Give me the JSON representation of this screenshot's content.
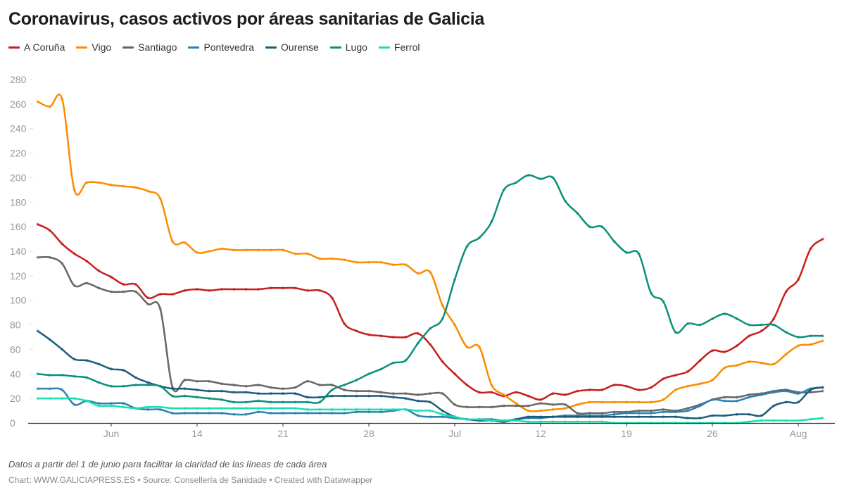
{
  "title": "Coronavirus, casos activos por áreas sanitarias de Galicia",
  "note": "Datos a partir del 1 de junio para facilitar la claridad de las líneas de cada área",
  "credit": "Chart: WWW.GALICIAPRESS.ES • Source: Consellería de Sanidade • Created with Datawrapper",
  "chart_data": {
    "type": "line",
    "title": "Coronavirus, casos activos por áreas sanitarias de Galicia",
    "xlabel": "",
    "ylabel": "",
    "ylim": [
      0,
      280
    ],
    "yticks": [
      0,
      20,
      40,
      60,
      80,
      100,
      120,
      140,
      160,
      180,
      200,
      220,
      240,
      260,
      280
    ],
    "x_start": "Jun 1",
    "x_end": "Aug 4",
    "xticks": [
      {
        "date": "Jun 7",
        "label": "Jun"
      },
      {
        "date": "Jun 14",
        "label": "14"
      },
      {
        "date": "Jun 21",
        "label": "21"
      },
      {
        "date": "Jun 28",
        "label": "28"
      },
      {
        "date": "Jul 5",
        "label": "Jul"
      },
      {
        "date": "Jul 12",
        "label": "12"
      },
      {
        "date": "Jul 19",
        "label": "19"
      },
      {
        "date": "Jul 26",
        "label": "26"
      },
      {
        "date": "Aug 2",
        "label": "Aug"
      }
    ],
    "grid": false,
    "legend": "top-left",
    "series": [
      {
        "name": "A Coruña",
        "color": "#c71e1d",
        "values": [
          162,
          157,
          146,
          138,
          132,
          124,
          119,
          113,
          113,
          102,
          105,
          105,
          108,
          109,
          108,
          109,
          109,
          109,
          109,
          110,
          110,
          110,
          108,
          108,
          102,
          81,
          75,
          72,
          71,
          70,
          70,
          73,
          64,
          50,
          40,
          31,
          25,
          25,
          22,
          25,
          22,
          19,
          24,
          23,
          26,
          27,
          27,
          31,
          30,
          27,
          29,
          36,
          39,
          42,
          51,
          59,
          58,
          63,
          71,
          75,
          85,
          107,
          117,
          142,
          150
        ]
      },
      {
        "name": "Vigo",
        "color": "#fa8c00",
        "values": [
          262,
          258,
          264,
          190,
          196,
          196,
          194,
          193,
          192,
          189,
          183,
          148,
          147,
          139,
          140,
          142,
          141,
          141,
          141,
          141,
          141,
          138,
          138,
          134,
          134,
          133,
          131,
          131,
          131,
          129,
          129,
          122,
          123,
          96,
          80,
          62,
          62,
          31,
          23,
          16,
          10,
          10,
          11,
          12,
          15,
          17,
          17,
          17,
          17,
          17,
          17,
          19,
          27,
          30,
          32,
          35,
          45,
          47,
          50,
          49,
          48,
          56,
          63,
          64,
          67
        ]
      },
      {
        "name": "Santiago",
        "color": "#666666",
        "values": [
          135,
          135,
          130,
          112,
          114,
          110,
          107,
          107,
          107,
          97,
          93,
          29,
          35,
          34,
          34,
          32,
          31,
          30,
          31,
          29,
          28,
          29,
          34,
          31,
          31,
          27,
          26,
          26,
          25,
          24,
          24,
          23,
          24,
          24,
          15,
          13,
          13,
          13,
          14,
          14,
          14,
          16,
          15,
          15,
          8,
          8,
          8,
          9,
          9,
          10,
          10,
          11,
          10,
          12,
          15,
          19,
          21,
          21,
          23,
          24,
          26,
          27,
          25,
          25,
          26
        ]
      },
      {
        "name": "Pontevedra",
        "color": "#2a82b3",
        "values": [
          28,
          28,
          27,
          15,
          18,
          16,
          16,
          16,
          12,
          11,
          11,
          8,
          8,
          8,
          8,
          8,
          7,
          7,
          9,
          8,
          8,
          8,
          8,
          8,
          8,
          8,
          9,
          9,
          9,
          10,
          11,
          6,
          5,
          5,
          4,
          3,
          3,
          3,
          2,
          3,
          4,
          4,
          5,
          6,
          6,
          6,
          6,
          7,
          8,
          8,
          8,
          9,
          9,
          10,
          14,
          19,
          18,
          18,
          21,
          23,
          25,
          26,
          24,
          28,
          29
        ]
      },
      {
        "name": "Ourense",
        "color": "#1b5b7d",
        "values": [
          75,
          68,
          60,
          52,
          51,
          48,
          44,
          43,
          37,
          33,
          30,
          28,
          28,
          27,
          26,
          26,
          25,
          25,
          24,
          24,
          24,
          24,
          21,
          21,
          22,
          22,
          22,
          22,
          22,
          21,
          20,
          18,
          17,
          10,
          5,
          3,
          2,
          2,
          1,
          3,
          5,
          5,
          5,
          5,
          5,
          5,
          5,
          5,
          5,
          5,
          5,
          5,
          5,
          4,
          4,
          6,
          6,
          7,
          7,
          6,
          14,
          17,
          17,
          27,
          29
        ]
      },
      {
        "name": "Lugo",
        "color": "#0a907a",
        "values": [
          40,
          39,
          39,
          38,
          37,
          33,
          30,
          30,
          31,
          31,
          30,
          22,
          22,
          21,
          20,
          19,
          17,
          17,
          18,
          17,
          17,
          17,
          17,
          17,
          27,
          31,
          35,
          40,
          44,
          49,
          51,
          65,
          77,
          85,
          117,
          144,
          151,
          164,
          190,
          196,
          202,
          199,
          200,
          181,
          171,
          160,
          160,
          148,
          139,
          138,
          106,
          99,
          74,
          81,
          80,
          85,
          89,
          85,
          80,
          80,
          80,
          74,
          70,
          71,
          71
        ]
      },
      {
        "name": "Ferrol",
        "color": "#17e0ae",
        "values": [
          20,
          20,
          20,
          20,
          18,
          14,
          14,
          13,
          12,
          13,
          13,
          12,
          12,
          12,
          12,
          12,
          12,
          12,
          12,
          12,
          12,
          12,
          11,
          11,
          11,
          11,
          11,
          11,
          11,
          11,
          11,
          10,
          10,
          7,
          5,
          3,
          3,
          2,
          2,
          2,
          1,
          1,
          1,
          1,
          1,
          1,
          1,
          0,
          0,
          0,
          0,
          0,
          0,
          0,
          0,
          0,
          0,
          0,
          1,
          2,
          2,
          2,
          2,
          3,
          4
        ]
      }
    ]
  }
}
